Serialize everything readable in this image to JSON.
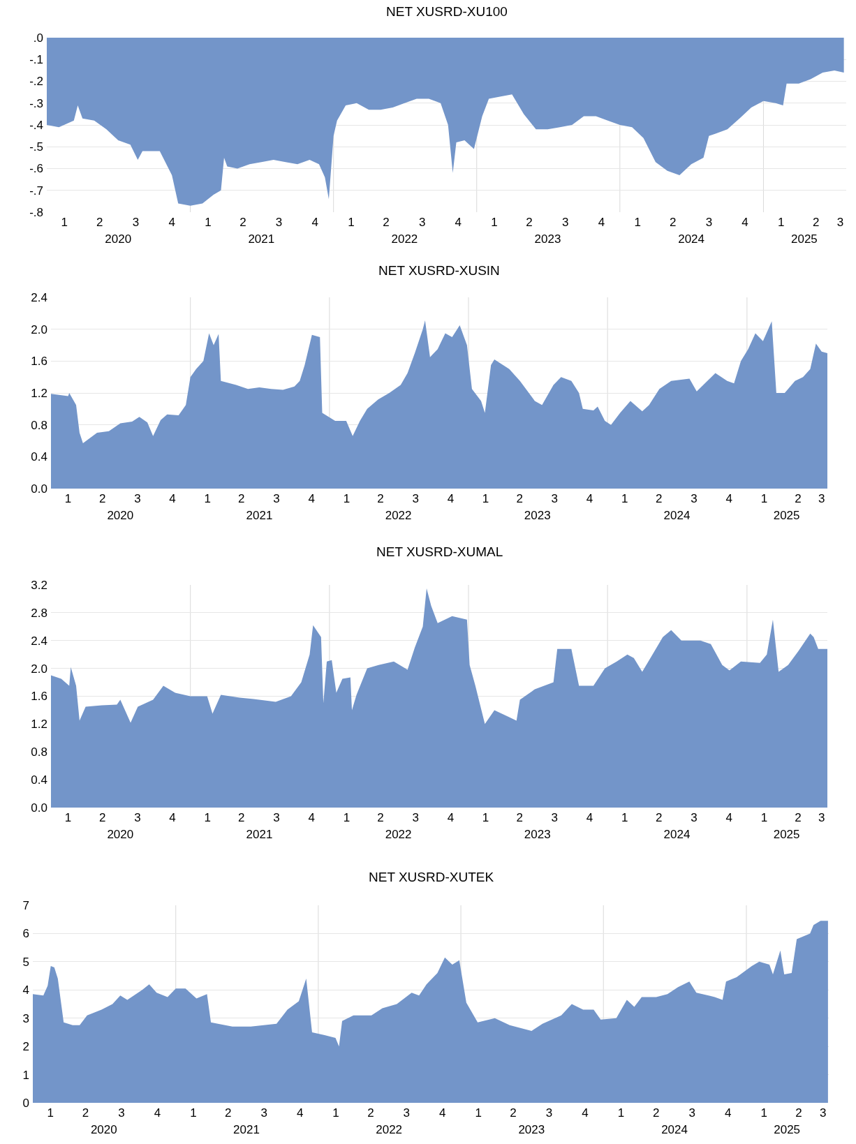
{
  "chart_data": [
    {
      "type": "area",
      "title": "NET XUSRD-XU100",
      "color": "#7395c9",
      "grid": "y",
      "xlim": [
        "2020-01-01",
        "2025-07-31"
      ],
      "ylim": [
        -0.8,
        0
      ],
      "yticks": [
        {
          "value": 0,
          "label": ".0"
        },
        {
          "value": -0.1,
          "label": "-.1"
        },
        {
          "value": -0.2,
          "label": "-.2"
        },
        {
          "value": -0.3,
          "label": "-.3"
        },
        {
          "value": -0.4,
          "label": "-.4"
        },
        {
          "value": -0.5,
          "label": "-.5"
        },
        {
          "value": -0.6,
          "label": "-.6"
        },
        {
          "value": -0.7,
          "label": "-.7"
        },
        {
          "value": -0.8,
          "label": "-.8"
        }
      ],
      "xticks": [
        {
          "value": "2020-02-15",
          "label": "1"
        },
        {
          "value": "2020-05-15",
          "label": "2"
        },
        {
          "value": "2020-08-15",
          "label": "3"
        },
        {
          "value": "2020-11-15",
          "label": "4"
        },
        {
          "value": "2021-02-15",
          "label": "1"
        },
        {
          "value": "2021-05-15",
          "label": "2"
        },
        {
          "value": "2021-08-15",
          "label": "3"
        },
        {
          "value": "2021-11-15",
          "label": "4"
        },
        {
          "value": "2022-02-15",
          "label": "1"
        },
        {
          "value": "2022-05-15",
          "label": "2"
        },
        {
          "value": "2022-08-15",
          "label": "3"
        },
        {
          "value": "2022-11-15",
          "label": "4"
        },
        {
          "value": "2023-02-15",
          "label": "1"
        },
        {
          "value": "2023-05-15",
          "label": "2"
        },
        {
          "value": "2023-08-15",
          "label": "3"
        },
        {
          "value": "2023-11-15",
          "label": "4"
        },
        {
          "value": "2024-02-15",
          "label": "1"
        },
        {
          "value": "2024-05-15",
          "label": "2"
        },
        {
          "value": "2024-08-15",
          "label": "3"
        },
        {
          "value": "2024-11-15",
          "label": "4"
        },
        {
          "value": "2025-02-15",
          "label": "1"
        },
        {
          "value": "2025-05-15",
          "label": "2"
        },
        {
          "value": "2025-07-16",
          "label": "3"
        }
      ],
      "x2lim": [
        "2020-01-01",
        "2025-07-31"
      ],
      "x2ticks": [
        {
          "value": "2020-07-01",
          "label": "2020"
        },
        {
          "value": "2021-07-01",
          "label": "2021"
        },
        {
          "value": "2022-07-01",
          "label": "2022"
        },
        {
          "value": "2023-07-01",
          "label": "2023"
        },
        {
          "value": "2024-07-01",
          "label": "2024"
        },
        {
          "value": "2025-04-15",
          "label": "2025"
        }
      ],
      "ref_lines": [
        {
          "axis": "x",
          "value": "2021-01-01",
          "color": "#d9d9d9"
        },
        {
          "axis": "x",
          "value": "2022-01-01",
          "color": "#d9d9d9"
        },
        {
          "axis": "x",
          "value": "2023-01-01",
          "color": "#d9d9d9"
        },
        {
          "axis": "x",
          "value": "2024-01-01",
          "color": "#d9d9d9"
        },
        {
          "axis": "x",
          "value": "2025-01-01",
          "color": "#d9d9d9"
        }
      ],
      "x": [
        "2020-01-01",
        "2020-02-01",
        "2020-03-10",
        "2020-03-20",
        "2020-04-01",
        "2020-05-01",
        "2020-06-01",
        "2020-07-01",
        "2020-08-01",
        "2020-08-20",
        "2020-09-01",
        "2020-10-15",
        "2020-11-15",
        "2020-12-01",
        "2021-01-01",
        "2021-02-01",
        "2021-03-01",
        "2021-03-20",
        "2021-03-28",
        "2021-04-05",
        "2021-05-01",
        "2021-06-01",
        "2021-07-01",
        "2021-08-01",
        "2021-09-01",
        "2021-10-01",
        "2021-11-01",
        "2021-11-25",
        "2021-12-10",
        "2021-12-20",
        "2022-01-01",
        "2022-01-10",
        "2022-02-01",
        "2022-03-01",
        "2022-04-01",
        "2022-05-01",
        "2022-06-01",
        "2022-07-01",
        "2022-08-01",
        "2022-09-01",
        "2022-10-01",
        "2022-10-20",
        "2022-11-01",
        "2022-11-10",
        "2022-12-01",
        "2022-12-25",
        "2023-01-15",
        "2023-02-01",
        "2023-03-01",
        "2023-04-01",
        "2023-05-01",
        "2023-06-01",
        "2023-07-01",
        "2023-08-01",
        "2023-09-01",
        "2023-10-01",
        "2023-11-01",
        "2023-12-01",
        "2024-01-01",
        "2024-02-01",
        "2024-03-01",
        "2024-04-01",
        "2024-05-01",
        "2024-06-01",
        "2024-07-01",
        "2024-08-01",
        "2024-08-15",
        "2024-09-01",
        "2024-10-01",
        "2024-11-01",
        "2024-12-01",
        "2025-01-01",
        "2025-02-01",
        "2025-02-20",
        "2025-03-01",
        "2025-04-01",
        "2025-05-01",
        "2025-06-01",
        "2025-07-01",
        "2025-07-25"
      ],
      "values": [
        -0.4,
        -0.41,
        -0.38,
        -0.31,
        -0.37,
        -0.38,
        -0.42,
        -0.47,
        -0.49,
        -0.56,
        -0.52,
        -0.52,
        -0.63,
        -0.76,
        -0.77,
        -0.76,
        -0.72,
        -0.7,
        -0.55,
        -0.59,
        -0.6,
        -0.58,
        -0.57,
        -0.56,
        -0.57,
        -0.58,
        -0.56,
        -0.58,
        -0.64,
        -0.74,
        -0.45,
        -0.38,
        -0.31,
        -0.3,
        -0.33,
        -0.33,
        -0.32,
        -0.3,
        -0.28,
        -0.28,
        -0.3,
        -0.4,
        -0.62,
        -0.48,
        -0.47,
        -0.51,
        -0.36,
        -0.28,
        -0.27,
        -0.26,
        -0.35,
        -0.42,
        -0.42,
        -0.41,
        -0.4,
        -0.36,
        -0.36,
        -0.38,
        -0.4,
        -0.41,
        -0.46,
        -0.57,
        -0.61,
        -0.63,
        -0.58,
        -0.55,
        -0.45,
        -0.44,
        -0.42,
        -0.37,
        -0.32,
        -0.29,
        -0.3,
        -0.31,
        -0.21,
        -0.21,
        -0.19,
        -0.16,
        -0.15,
        -0.16
      ]
    },
    {
      "type": "area",
      "title": "NET XUSRD-XUSIN",
      "color": "#7395c9",
      "grid": "y",
      "xlim": [
        "2020-01-01",
        "2025-07-31"
      ],
      "ylim": [
        0,
        2.4
      ],
      "yticks": [
        {
          "value": 0,
          "label": "0.0"
        },
        0.4,
        0.8,
        1.2,
        1.6,
        {
          "value": 2,
          "label": "2.0"
        },
        2.4
      ],
      "xticks": [
        {
          "value": "2020-02-15",
          "label": "1"
        },
        {
          "value": "2020-05-15",
          "label": "2"
        },
        {
          "value": "2020-08-15",
          "label": "3"
        },
        {
          "value": "2020-11-15",
          "label": "4"
        },
        {
          "value": "2021-02-15",
          "label": "1"
        },
        {
          "value": "2021-05-15",
          "label": "2"
        },
        {
          "value": "2021-08-15",
          "label": "3"
        },
        {
          "value": "2021-11-15",
          "label": "4"
        },
        {
          "value": "2022-02-15",
          "label": "1"
        },
        {
          "value": "2022-05-15",
          "label": "2"
        },
        {
          "value": "2022-08-15",
          "label": "3"
        },
        {
          "value": "2022-11-15",
          "label": "4"
        },
        {
          "value": "2023-02-15",
          "label": "1"
        },
        {
          "value": "2023-05-15",
          "label": "2"
        },
        {
          "value": "2023-08-15",
          "label": "3"
        },
        {
          "value": "2023-11-15",
          "label": "4"
        },
        {
          "value": "2024-02-15",
          "label": "1"
        },
        {
          "value": "2024-05-15",
          "label": "2"
        },
        {
          "value": "2024-08-15",
          "label": "3"
        },
        {
          "value": "2024-11-15",
          "label": "4"
        },
        {
          "value": "2025-02-15",
          "label": "1"
        },
        {
          "value": "2025-05-15",
          "label": "2"
        },
        {
          "value": "2025-07-16",
          "label": "3"
        }
      ],
      "x2lim": [
        "2020-01-01",
        "2025-07-31"
      ],
      "x2ticks": [
        {
          "value": "2020-07-01",
          "label": "2020"
        },
        {
          "value": "2021-07-01",
          "label": "2021"
        },
        {
          "value": "2022-07-01",
          "label": "2022"
        },
        {
          "value": "2023-07-01",
          "label": "2023"
        },
        {
          "value": "2024-07-01",
          "label": "2024"
        },
        {
          "value": "2025-04-15",
          "label": "2025"
        }
      ],
      "ref_lines": [
        {
          "axis": "x",
          "value": "2021-01-01",
          "color": "#d9d9d9"
        },
        {
          "axis": "x",
          "value": "2022-01-01",
          "color": "#d9d9d9"
        },
        {
          "axis": "x",
          "value": "2023-01-01",
          "color": "#d9d9d9"
        },
        {
          "axis": "x",
          "value": "2024-01-01",
          "color": "#d9d9d9"
        },
        {
          "axis": "x",
          "value": "2025-01-01",
          "color": "#d9d9d9"
        }
      ],
      "x": [
        "2020-01-01",
        "2020-02-15",
        "2020-02-18",
        "2020-03-07",
        "2020-03-16",
        "2020-03-25",
        "2020-05-01",
        "2020-06-01",
        "2020-07-01",
        "2020-08-01",
        "2020-08-20",
        "2020-09-10",
        "2020-09-25",
        "2020-10-15",
        "2020-11-01",
        "2020-12-01",
        "2020-12-20",
        "2021-01-01",
        "2021-01-16",
        "2021-02-04",
        "2021-02-19",
        "2021-03-03",
        "2021-03-16",
        "2021-03-22",
        "2021-05-01",
        "2021-06-01",
        "2021-07-01",
        "2021-08-01",
        "2021-09-01",
        "2021-10-01",
        "2021-10-15",
        "2021-10-28",
        "2021-11-16",
        "2021-12-07",
        "2021-12-13",
        "2022-01-16",
        "2022-02-14",
        "2022-03-03",
        "2022-03-22",
        "2022-04-10",
        "2022-05-09",
        "2022-06-07",
        "2022-07-07",
        "2022-07-25",
        "2022-08-13",
        "2022-09-03",
        "2022-09-09",
        "2022-09-22",
        "2022-10-12",
        "2022-11-01",
        "2022-11-19",
        "2022-12-09",
        "2022-12-28",
        "2023-01-10",
        "2023-02-03",
        "2023-02-13",
        "2023-03-01",
        "2023-03-10",
        "2023-04-18",
        "2023-05-16",
        "2023-06-24",
        "2023-07-13",
        "2023-08-12",
        "2023-09-01",
        "2023-09-28",
        "2023-10-18",
        "2023-10-28",
        "2023-11-25",
        "2023-12-06",
        "2023-12-25",
        "2024-01-10",
        "2024-02-03",
        "2024-03-01",
        "2024-04-01",
        "2024-04-19",
        "2024-05-16",
        "2024-06-16",
        "2024-08-03",
        "2024-08-22",
        "2024-09-19",
        "2024-10-10",
        "2024-11-10",
        "2024-11-28",
        "2024-12-16",
        "2025-01-04",
        "2025-01-23",
        "2025-02-12",
        "2025-03-07",
        "2025-03-19",
        "2025-04-10",
        "2025-05-07",
        "2025-05-28",
        "2025-06-16",
        "2025-07-01",
        "2025-07-16",
        "2025-07-31"
      ],
      "values": [
        1.19,
        1.16,
        1.2,
        1.05,
        0.7,
        0.57,
        0.7,
        0.72,
        0.82,
        0.84,
        0.9,
        0.83,
        0.66,
        0.86,
        0.93,
        0.92,
        1.05,
        1.4,
        1.5,
        1.6,
        1.95,
        1.8,
        1.94,
        1.35,
        1.3,
        1.25,
        1.27,
        1.25,
        1.24,
        1.28,
        1.35,
        1.55,
        1.93,
        1.9,
        0.95,
        0.85,
        0.85,
        0.66,
        0.85,
        1.0,
        1.12,
        1.2,
        1.3,
        1.45,
        1.7,
        2.0,
        2.11,
        1.65,
        1.75,
        1.95,
        1.9,
        2.05,
        1.8,
        1.25,
        1.1,
        0.95,
        1.55,
        1.62,
        1.5,
        1.35,
        1.1,
        1.05,
        1.3,
        1.4,
        1.35,
        1.2,
        1.0,
        0.98,
        1.03,
        0.85,
        0.8,
        0.95,
        1.1,
        0.97,
        1.05,
        1.25,
        1.35,
        1.38,
        1.22,
        1.35,
        1.45,
        1.35,
        1.32,
        1.6,
        1.75,
        1.95,
        1.85,
        2.1,
        1.2,
        1.2,
        1.35,
        1.4,
        1.5,
        1.82,
        1.72,
        1.7
      ]
    },
    {
      "type": "area",
      "title": "NET XUSRD-XUMAL",
      "color": "#7395c9",
      "grid": "y",
      "xlim": [
        "2020-01-01",
        "2025-07-31"
      ],
      "ylim": [
        0,
        3.2
      ],
      "yticks": [
        {
          "value": 0,
          "label": "0.0"
        },
        0.4,
        0.8,
        1.2,
        1.6,
        {
          "value": 2,
          "label": "2.0"
        },
        2.4,
        2.8,
        3.2
      ],
      "xticks": [
        {
          "value": "2020-02-15",
          "label": "1"
        },
        {
          "value": "2020-05-15",
          "label": "2"
        },
        {
          "value": "2020-08-15",
          "label": "3"
        },
        {
          "value": "2020-11-15",
          "label": "4"
        },
        {
          "value": "2021-02-15",
          "label": "1"
        },
        {
          "value": "2021-05-15",
          "label": "2"
        },
        {
          "value": "2021-08-15",
          "label": "3"
        },
        {
          "value": "2021-11-15",
          "label": "4"
        },
        {
          "value": "2022-02-15",
          "label": "1"
        },
        {
          "value": "2022-05-15",
          "label": "2"
        },
        {
          "value": "2022-08-15",
          "label": "3"
        },
        {
          "value": "2022-11-15",
          "label": "4"
        },
        {
          "value": "2023-02-15",
          "label": "1"
        },
        {
          "value": "2023-05-15",
          "label": "2"
        },
        {
          "value": "2023-08-15",
          "label": "3"
        },
        {
          "value": "2023-11-15",
          "label": "4"
        },
        {
          "value": "2024-02-15",
          "label": "1"
        },
        {
          "value": "2024-05-15",
          "label": "2"
        },
        {
          "value": "2024-08-15",
          "label": "3"
        },
        {
          "value": "2024-11-15",
          "label": "4"
        },
        {
          "value": "2025-02-15",
          "label": "1"
        },
        {
          "value": "2025-05-15",
          "label": "2"
        },
        {
          "value": "2025-07-16",
          "label": "3"
        }
      ],
      "x2lim": [
        "2020-01-01",
        "2025-07-31"
      ],
      "x2ticks": [
        {
          "value": "2020-07-01",
          "label": "2020"
        },
        {
          "value": "2021-07-01",
          "label": "2021"
        },
        {
          "value": "2022-07-01",
          "label": "2022"
        },
        {
          "value": "2023-07-01",
          "label": "2023"
        },
        {
          "value": "2024-07-01",
          "label": "2024"
        },
        {
          "value": "2025-04-15",
          "label": "2025"
        }
      ],
      "ref_lines": [
        {
          "axis": "x",
          "value": "2021-01-01",
          "color": "#d9d9d9"
        },
        {
          "axis": "x",
          "value": "2022-01-01",
          "color": "#d9d9d9"
        },
        {
          "axis": "x",
          "value": "2023-01-01",
          "color": "#d9d9d9"
        },
        {
          "axis": "x",
          "value": "2024-01-01",
          "color": "#d9d9d9"
        },
        {
          "axis": "x",
          "value": "2025-01-01",
          "color": "#d9d9d9"
        }
      ],
      "x": [
        "2020-01-01",
        "2020-01-28",
        "2020-02-18",
        "2020-02-22",
        "2020-03-07",
        "2020-03-16",
        "2020-04-01",
        "2020-05-13",
        "2020-06-22",
        "2020-07-01",
        "2020-07-28",
        "2020-08-16",
        "2020-09-25",
        "2020-10-22",
        "2020-11-22",
        "2021-01-01",
        "2021-02-14",
        "2021-02-28",
        "2021-03-22",
        "2021-05-10",
        "2021-06-16",
        "2021-08-13",
        "2021-09-22",
        "2021-10-19",
        "2021-11-10",
        "2021-11-19",
        "2021-12-10",
        "2021-12-16",
        "2021-12-25",
        "2022-01-07",
        "2022-01-19",
        "2022-02-04",
        "2022-02-25",
        "2022-03-01",
        "2022-03-13",
        "2022-04-10",
        "2022-05-10",
        "2022-06-19",
        "2022-07-25",
        "2022-08-13",
        "2022-09-03",
        "2022-09-13",
        "2022-09-25",
        "2022-10-12",
        "2022-11-19",
        "2022-12-28",
        "2023-01-04",
        "2023-01-19",
        "2023-02-13",
        "2023-03-10",
        "2023-04-18",
        "2023-05-07",
        "2023-05-16",
        "2023-06-24",
        "2023-08-12",
        "2023-08-22",
        "2023-09-28",
        "2023-10-18",
        "2023-11-25",
        "2023-12-25",
        "2024-01-25",
        "2024-02-22",
        "2024-03-10",
        "2024-04-01",
        "2024-04-28",
        "2024-05-25",
        "2024-06-16",
        "2024-07-13",
        "2024-09-01",
        "2024-09-28",
        "2024-10-28",
        "2024-11-16",
        "2024-12-16",
        "2025-02-04",
        "2025-02-22",
        "2025-03-10",
        "2025-03-25",
        "2025-04-19",
        "2025-05-16",
        "2025-06-16",
        "2025-06-25",
        "2025-07-07",
        "2025-07-31"
      ],
      "values": [
        1.9,
        1.85,
        1.75,
        2.02,
        1.75,
        1.25,
        1.45,
        1.47,
        1.48,
        1.55,
        1.22,
        1.45,
        1.55,
        1.75,
        1.65,
        1.6,
        1.6,
        1.35,
        1.62,
        1.58,
        1.56,
        1.52,
        1.6,
        1.8,
        2.2,
        2.62,
        2.45,
        1.5,
        2.1,
        2.12,
        1.65,
        1.85,
        1.87,
        1.4,
        1.62,
        2.0,
        2.05,
        2.1,
        1.98,
        2.3,
        2.6,
        3.15,
        2.9,
        2.65,
        2.75,
        2.7,
        2.05,
        1.75,
        1.2,
        1.4,
        1.3,
        1.25,
        1.55,
        1.7,
        1.8,
        2.28,
        2.28,
        1.75,
        1.75,
        2.0,
        2.1,
        2.2,
        2.15,
        1.95,
        2.2,
        2.45,
        2.55,
        2.4,
        2.4,
        2.35,
        2.05,
        1.97,
        2.1,
        2.08,
        2.2,
        2.7,
        1.95,
        2.05,
        2.25,
        2.5,
        2.45,
        2.28,
        2.28
      ]
    },
    {
      "type": "area",
      "title": "NET XUSRD-XUTEK",
      "color": "#7395c9",
      "grid": "y",
      "xlim": [
        "2020-01-01",
        "2025-07-31"
      ],
      "ylim": [
        0,
        7
      ],
      "yticks": [
        0,
        1,
        2,
        3,
        4,
        5,
        6,
        7
      ],
      "xticks": [
        {
          "value": "2020-02-15",
          "label": "1"
        },
        {
          "value": "2020-05-15",
          "label": "2"
        },
        {
          "value": "2020-08-15",
          "label": "3"
        },
        {
          "value": "2020-11-15",
          "label": "4"
        },
        {
          "value": "2021-02-15",
          "label": "1"
        },
        {
          "value": "2021-05-15",
          "label": "2"
        },
        {
          "value": "2021-08-15",
          "label": "3"
        },
        {
          "value": "2021-11-15",
          "label": "4"
        },
        {
          "value": "2022-02-15",
          "label": "1"
        },
        {
          "value": "2022-05-15",
          "label": "2"
        },
        {
          "value": "2022-08-15",
          "label": "3"
        },
        {
          "value": "2022-11-15",
          "label": "4"
        },
        {
          "value": "2023-02-15",
          "label": "1"
        },
        {
          "value": "2023-05-15",
          "label": "2"
        },
        {
          "value": "2023-08-15",
          "label": "3"
        },
        {
          "value": "2023-11-15",
          "label": "4"
        },
        {
          "value": "2024-02-15",
          "label": "1"
        },
        {
          "value": "2024-05-15",
          "label": "2"
        },
        {
          "value": "2024-08-15",
          "label": "3"
        },
        {
          "value": "2024-11-15",
          "label": "4"
        },
        {
          "value": "2025-02-15",
          "label": "1"
        },
        {
          "value": "2025-05-15",
          "label": "2"
        },
        {
          "value": "2025-07-16",
          "label": "3"
        }
      ],
      "x2lim": [
        "2020-01-01",
        "2025-07-31"
      ],
      "x2ticks": [
        {
          "value": "2020-07-01",
          "label": "2020"
        },
        {
          "value": "2021-07-01",
          "label": "2021"
        },
        {
          "value": "2022-07-01",
          "label": "2022"
        },
        {
          "value": "2023-07-01",
          "label": "2023"
        },
        {
          "value": "2024-07-01",
          "label": "2024"
        },
        {
          "value": "2025-04-15",
          "label": "2025"
        }
      ],
      "ref_lines": [
        {
          "axis": "x",
          "value": "2021-01-01",
          "color": "#d9d9d9"
        },
        {
          "axis": "x",
          "value": "2022-01-01",
          "color": "#d9d9d9"
        },
        {
          "axis": "x",
          "value": "2023-01-01",
          "color": "#d9d9d9"
        },
        {
          "axis": "x",
          "value": "2024-01-01",
          "color": "#d9d9d9"
        },
        {
          "axis": "x",
          "value": "2025-01-01",
          "color": "#d9d9d9"
        }
      ],
      "x": [
        "2020-01-01",
        "2020-01-28",
        "2020-02-08",
        "2020-02-16",
        "2020-02-25",
        "2020-03-05",
        "2020-03-20",
        "2020-04-12",
        "2020-04-30",
        "2020-05-19",
        "2020-06-25",
        "2020-07-23",
        "2020-08-12",
        "2020-08-30",
        "2020-10-07",
        "2020-10-25",
        "2020-11-13",
        "2020-12-11",
        "2021-01-01",
        "2021-01-26",
        "2021-02-23",
        "2021-03-22",
        "2021-04-01",
        "2021-04-19",
        "2021-05-26",
        "2021-07-12",
        "2021-09-16",
        "2021-10-14",
        "2021-11-12",
        "2021-12-01",
        "2021-12-16",
        "2022-01-17",
        "2022-02-14",
        "2022-02-23",
        "2022-03-03",
        "2022-04-01",
        "2022-05-17",
        "2022-06-14",
        "2022-07-21",
        "2022-08-28",
        "2022-09-16",
        "2022-10-05",
        "2022-11-02",
        "2022-11-21",
        "2022-12-10",
        "2022-12-28",
        "2023-01-15",
        "2023-02-13",
        "2023-03-29",
        "2023-05-06",
        "2023-07-01",
        "2023-07-29",
        "2023-09-15",
        "2023-10-12",
        "2023-11-10",
        "2023-12-07",
        "2023-12-25",
        "2024-02-03",
        "2024-03-01",
        "2024-03-20",
        "2024-04-08",
        "2024-05-15",
        "2024-06-13",
        "2024-07-10",
        "2024-08-08",
        "2024-08-26",
        "2024-10-12",
        "2024-11-01",
        "2024-11-10",
        "2024-12-07",
        "2025-01-15",
        "2025-02-03",
        "2025-03-01",
        "2025-03-10",
        "2025-03-29",
        "2025-04-08",
        "2025-04-27",
        "2025-05-10",
        "2025-06-13",
        "2025-06-22",
        "2025-07-10",
        "2025-07-29"
      ],
      "values": [
        3.85,
        3.8,
        4.15,
        4.85,
        4.8,
        4.4,
        2.85,
        2.75,
        2.75,
        3.1,
        3.3,
        3.5,
        3.8,
        3.65,
        4.0,
        4.2,
        3.9,
        3.75,
        4.05,
        4.05,
        3.7,
        3.85,
        2.85,
        2.8,
        2.7,
        2.7,
        2.8,
        3.3,
        3.6,
        4.4,
        2.5,
        2.4,
        2.3,
        2.0,
        2.9,
        3.1,
        3.1,
        3.35,
        3.5,
        3.9,
        3.8,
        4.2,
        4.6,
        5.15,
        4.9,
        5.05,
        3.55,
        2.85,
        3.0,
        2.75,
        2.55,
        2.8,
        3.1,
        3.5,
        3.3,
        3.3,
        2.95,
        3.0,
        3.65,
        3.4,
        3.75,
        3.75,
        3.85,
        4.1,
        4.3,
        3.9,
        3.75,
        3.65,
        4.3,
        4.45,
        4.85,
        5.0,
        4.9,
        4.55,
        5.4,
        4.55,
        4.6,
        5.8,
        6.0,
        6.3,
        6.45,
        6.45
      ]
    }
  ]
}
